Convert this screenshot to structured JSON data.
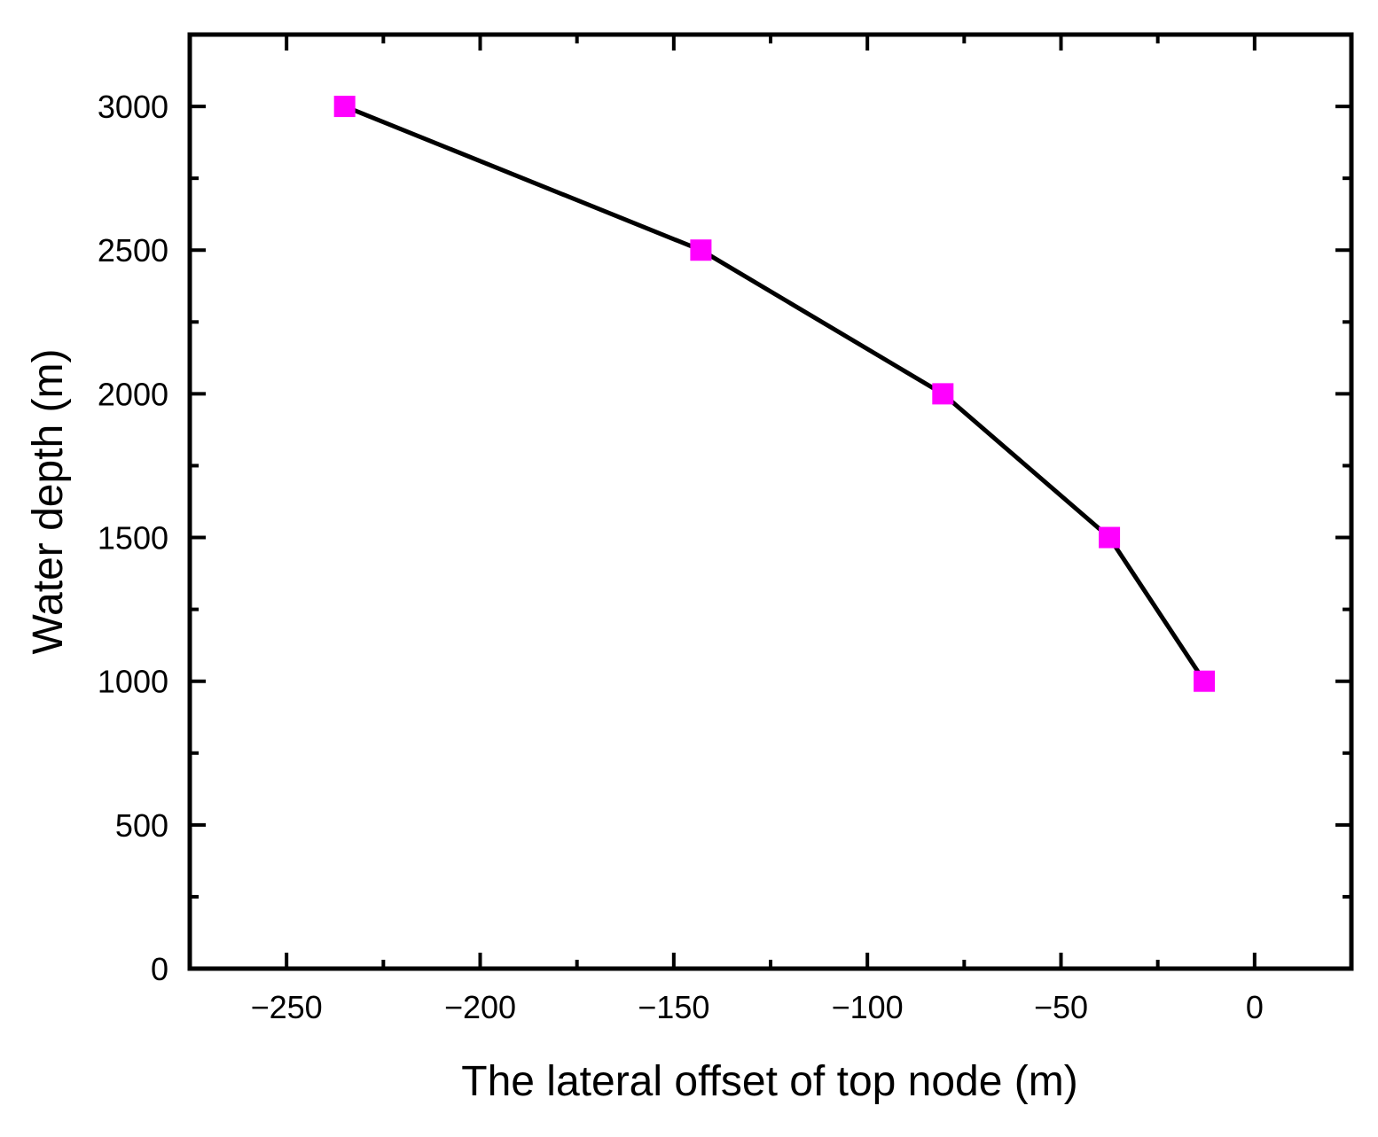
{
  "chart_data": {
    "type": "line",
    "title": "",
    "xlabel": "The lateral offset of top node (m)",
    "ylabel": "Water depth (m)",
    "xlim": [
      -275,
      25
    ],
    "ylim": [
      0,
      3250
    ],
    "xticks": [
      -250,
      -200,
      -150,
      -100,
      -50,
      0
    ],
    "xtick_labels": [
      "−250",
      "−200",
      "−150",
      "−100",
      "−50",
      "0"
    ],
    "yticks": [
      0,
      500,
      1000,
      1500,
      2000,
      2500,
      3000
    ],
    "ytick_labels": [
      "0",
      "500",
      "1000",
      "1500",
      "2000",
      "2500",
      "3000"
    ],
    "grid": false,
    "legend": "none",
    "series": [
      {
        "x": [
          -235,
          -143,
          -80.5,
          -37.5,
          -13
        ],
        "y": [
          3000,
          2500,
          2000,
          1500,
          1000
        ],
        "line_color": "#000000",
        "marker": "square",
        "marker_color": "#ff00ff"
      }
    ]
  }
}
